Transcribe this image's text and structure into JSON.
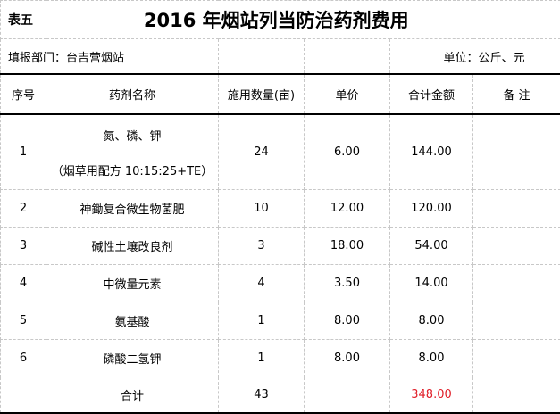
{
  "table_tag": "表五",
  "title": "2016 年烟站列当防治药剂费用",
  "dept": "填报部门：台吉营烟站",
  "unit": "单位：公斤、元",
  "headers": [
    "序号",
    "药剂名称",
    "施用数量(亩)",
    "单价",
    "合计金额",
    "备 注"
  ],
  "rows": [
    {
      "no": "1",
      "name": "氮、磷、钾",
      "name_line2": "（烟草用配方 10:15:25+TE）",
      "qty": "24",
      "price": "6.00",
      "amount": "144.00",
      "note": ""
    },
    {
      "no": "2",
      "name": "神鋤复合微生物菌肥",
      "qty": "10",
      "price": "12.00",
      "amount": "120.00",
      "note": ""
    },
    {
      "no": "3",
      "name": "碱性土壤改良剂",
      "qty": "3",
      "price": "18.00",
      "amount": "54.00",
      "note": ""
    },
    {
      "no": "4",
      "name": "中微量元素",
      "qty": "4",
      "price": "3.50",
      "amount": "14.00",
      "note": ""
    },
    {
      "no": "5",
      "name": "氨基酸",
      "qty": "1",
      "price": "8.00",
      "amount": "8.00",
      "note": ""
    },
    {
      "no": "6",
      "name": "磷酸二氢钾",
      "qty": "1",
      "price": "8.00",
      "amount": "8.00",
      "note": ""
    }
  ],
  "total": {
    "label": "合计",
    "qty": "43",
    "amount": "348.00",
    "amount_color": "#e0202a"
  }
}
